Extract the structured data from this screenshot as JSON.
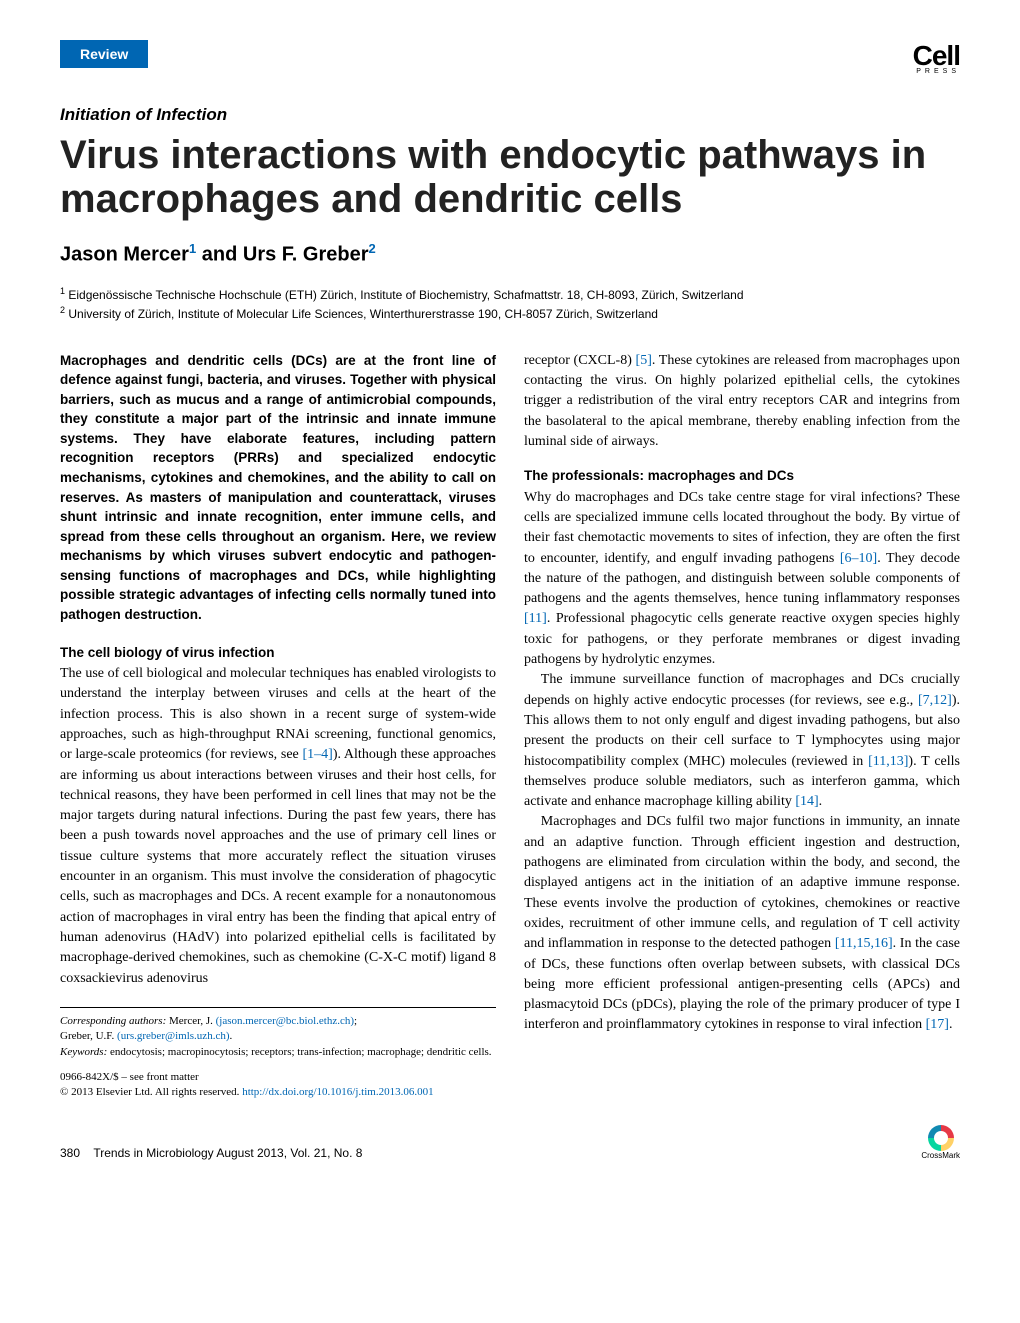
{
  "header": {
    "badge": "Review",
    "logo_main": "Cell",
    "logo_sub": "PRESS"
  },
  "series_title": "Initiation of Infection",
  "title": "Virus interactions with endocytic pathways in macrophages and dendritic cells",
  "authors_html": "Jason Mercer<sup>1</sup> and Urs F. Greber<sup>2</sup>",
  "author1": "Jason Mercer",
  "author1_sup": "1",
  "author_and": " and ",
  "author2": "Urs F. Greber",
  "author2_sup": "2",
  "affiliations": {
    "a1_sup": "1",
    "a1": " Eidgenössische Technische Hochschule (ETH) Zürich, Institute of Biochemistry, Schafmattstr. 18, CH-8093, Zürich, Switzerland",
    "a2_sup": "2",
    "a2": " University of Zürich, Institute of Molecular Life Sciences, Winterthurerstrasse 190, CH-8057 Zürich, Switzerland"
  },
  "abstract": "Macrophages and dendritic cells (DCs) are at the front line of defence against fungi, bacteria, and viruses. Together with physical barriers, such as mucus and a range of antimicrobial compounds, they constitute a major part of the intrinsic and innate immune systems. They have elaborate features, including pattern recognition receptors (PRRs) and specialized endocytic mechanisms, cytokines and chemokines, and the ability to call on reserves. As masters of manipulation and counterattack, viruses shunt intrinsic and innate recognition, enter immune cells, and spread from these cells throughout an organism. Here, we review mechanisms by which viruses subvert endocytic and pathogen-sensing functions of macrophages and DCs, while highlighting possible strategic advantages of infecting cells normally tuned into pathogen destruction.",
  "section1_heading": "The cell biology of virus infection",
  "section1_p1a": "The use of cell biological and molecular techniques has enabled virologists to understand the interplay between viruses and cells at the heart of the infection process. This is also shown in a recent surge of system-wide approaches, such as high-throughput RNAi screening, functional genomics, or large-scale proteomics (for reviews, see ",
  "section1_ref1": "[1–4]",
  "section1_p1b": "). Although these approaches are informing us about interactions between viruses and their host cells, for technical reasons, they have been performed in cell lines that may not be the major targets during natural infections. During the past few years, there has been a push towards novel approaches and the use of primary cell lines or tissue culture systems that more accurately reflect the situation viruses encounter in an organism. This must involve the consideration of phagocytic cells, such as macrophages and DCs. A recent example for a nonautonomous action of macrophages in viral entry has been the finding that apical entry of human adenovirus (HAdV) into polarized epithelial cells is facilitated by macrophage-derived chemokines, such as chemokine (C-X-C motif) ligand 8 coxsackievirus adenovirus",
  "col2_p1a": "receptor (CXCL-8) ",
  "col2_ref5": "[5]",
  "col2_p1b": ". These cytokines are released from macrophages upon contacting the virus. On highly polarized epithelial cells, the cytokines trigger a redistribution of the viral entry receptors CAR and integrins from the basolateral to the apical membrane, thereby enabling infection from the luminal side of airways.",
  "section2_heading": "The professionals: macrophages and DCs",
  "section2_p1a": "Why do macrophages and DCs take centre stage for viral infections? These cells are specialized immune cells located throughout the body. By virtue of their fast chemotactic movements to sites of infection, they are often the first to encounter, identify, and engulf invading pathogens ",
  "section2_ref610": "[6–10]",
  "section2_p1b": ". They decode the nature of the pathogen, and distinguish between soluble components of pathogens and the agents themselves, hence tuning inflammatory responses ",
  "section2_ref11": "[11]",
  "section2_p1c": ". Professional phagocytic cells generate reactive oxygen species highly toxic for pathogens, or they perforate membranes or digest invading pathogens by hydrolytic enzymes.",
  "section2_p2a": "The immune surveillance function of macrophages and DCs crucially depends on highly active endocytic processes (for reviews, see e.g., ",
  "section2_ref712": "[7,12]",
  "section2_p2b": "). This allows them to not only engulf and digest invading pathogens, but also present the products on their cell surface to T lymphocytes using major histocompatibility complex (MHC) molecules (reviewed in ",
  "section2_ref1113": "[11,13]",
  "section2_p2c": "). T cells themselves produce soluble mediators, such as interferon gamma, which activate and enhance macrophage killing ability ",
  "section2_ref14": "[14]",
  "section2_p2d": ".",
  "section2_p3a": "Macrophages and DCs fulfil two major functions in immunity, an innate and an adaptive function. Through efficient ingestion and destruction, pathogens are eliminated from circulation within the body, and second, the displayed antigens act in the initiation of an adaptive immune response. These events involve the production of cytokines, chemokines or reactive oxides, recruitment of other immune cells, and regulation of T cell activity and inflammation in response to the detected pathogen ",
  "section2_ref111516": "[11,15,16]",
  "section2_p3b": ". In the case of DCs, these functions often overlap between subsets, with classical DCs being more efficient professional antigen-presenting cells (APCs) and plasmacytoid DCs (pDCs), playing the role of the primary producer of type I interferon and proinflammatory cytokines in response to viral infection ",
  "section2_ref17": "[17]",
  "section2_p3c": ".",
  "footnotes": {
    "corresponding_label": "Corresponding authors:",
    "corr1_name": " Mercer, J. ",
    "corr1_email": "(jason.mercer@bc.biol.ethz.ch)",
    "corr1_sep": ";",
    "corr2_name": "Greber, U.F. ",
    "corr2_email": "(urs.greber@imls.uzh.ch)",
    "corr2_end": ".",
    "keywords_label": "Keywords:",
    "keywords": " endocytosis; macropinocytosis; receptors; trans-infection; macrophage; dendritic cells.",
    "issn": "0966-842X/$ – see front matter",
    "copyright": "© 2013 Elsevier Ltd. All rights reserved. ",
    "doi": "http://dx.doi.org/10.1016/j.tim.2013.06.001"
  },
  "footer": {
    "page": "380",
    "journal": "Trends in Microbiology August 2013, Vol. 21, No. 8",
    "crossmark": "CrossMark"
  },
  "colors": {
    "brand_blue": "#0066b3",
    "text": "#000000",
    "background": "#ffffff"
  },
  "typography": {
    "title_fontsize_pt": 30,
    "body_fontsize_pt": 10.5,
    "abstract_fontsize_pt": 10,
    "footnote_fontsize_pt": 8
  }
}
